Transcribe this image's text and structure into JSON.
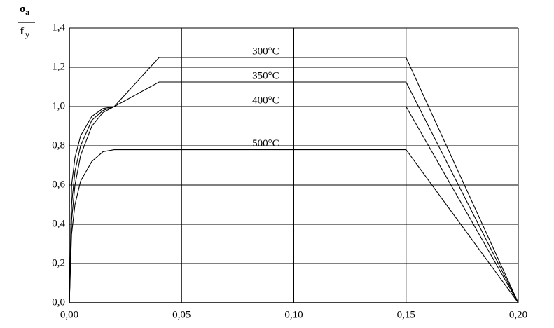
{
  "chart_data": {
    "type": "line",
    "ylabel": {
      "numerator": {
        "symbol": "σ",
        "sub": "a"
      },
      "denominator": {
        "symbol": "f",
        "sub": "y"
      }
    },
    "series": [
      {
        "name": "300°C",
        "color": "#000000",
        "x": [
          0,
          0.001,
          0.0025,
          0.005,
          0.01,
          0.015,
          0.02,
          0.04,
          0.15,
          0.2
        ],
        "values": [
          0,
          0.6,
          0.74,
          0.85,
          0.95,
          0.99,
          1.0,
          1.25,
          1.25,
          0
        ]
      },
      {
        "name": "350°C",
        "color": "#000000",
        "x": [
          0,
          0.001,
          0.0025,
          0.005,
          0.01,
          0.015,
          0.02,
          0.04,
          0.15,
          0.2
        ],
        "values": [
          0,
          0.5,
          0.67,
          0.8,
          0.93,
          0.98,
          1.0,
          1.125,
          1.125,
          0
        ]
      },
      {
        "name": "400°C",
        "color": "#000000",
        "x": [
          0,
          0.001,
          0.0025,
          0.005,
          0.01,
          0.015,
          0.02,
          0.15,
          0.2
        ],
        "values": [
          0,
          0.42,
          0.6,
          0.75,
          0.9,
          0.97,
          1.0,
          1.0,
          0
        ]
      },
      {
        "name": "500°C",
        "color": "#000000",
        "x": [
          0,
          0.001,
          0.0025,
          0.005,
          0.01,
          0.015,
          0.02,
          0.15,
          0.2
        ],
        "values": [
          0,
          0.35,
          0.5,
          0.62,
          0.72,
          0.77,
          0.78,
          0.78,
          0
        ]
      }
    ],
    "xlim": [
      0,
      0.2
    ],
    "xticks": [
      {
        "value": 0,
        "label": "0,00"
      },
      {
        "value": 0.05,
        "label": "0,05"
      },
      {
        "value": 0.1,
        "label": "0,10"
      },
      {
        "value": 0.15,
        "label": "0,15"
      },
      {
        "value": 0.2,
        "label": "0,20"
      }
    ],
    "ylim": [
      0,
      1.4
    ],
    "yticks": [
      {
        "value": 0,
        "label": "0,0"
      },
      {
        "value": 0.2,
        "label": "0,2"
      },
      {
        "value": 0.4,
        "label": "0,4"
      },
      {
        "value": 0.6,
        "label": "0,6"
      },
      {
        "value": 0.8,
        "label": "0,8"
      },
      {
        "value": 1.0,
        "label": "1,0"
      },
      {
        "value": 1.2,
        "label": "1,2"
      },
      {
        "value": 1.4,
        "label": "1,4"
      }
    ],
    "grid": true
  }
}
